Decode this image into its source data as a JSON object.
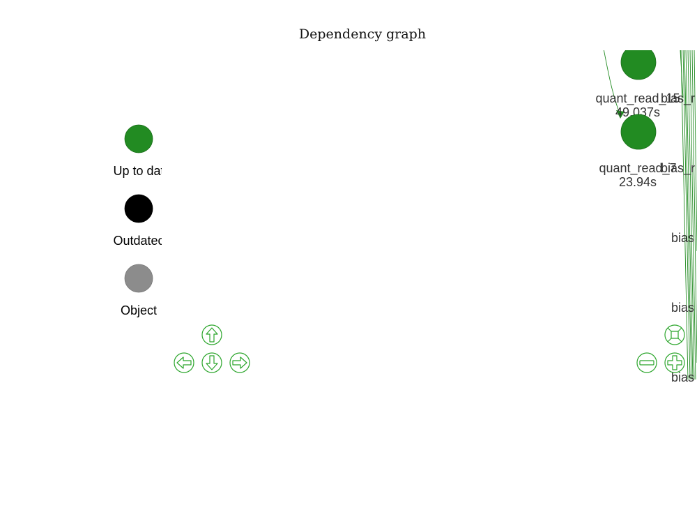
{
  "title": "Dependency graph",
  "colors": {
    "up_to_date": "#228b22",
    "outdated": "#000000",
    "object": "#8c8c8c",
    "edge": "#228b22",
    "control": "#2aa52a",
    "node_label": "#333333"
  },
  "legend": [
    {
      "label": "Up to dat",
      "status": "up_to_date"
    },
    {
      "label": "Outdatec",
      "status": "outdated"
    },
    {
      "label": "Object",
      "status": "object"
    }
  ],
  "nodes": [
    {
      "name": "quant_read_15",
      "time": "49.037s",
      "status": "up_to_date"
    },
    {
      "name": "quant_read_7",
      "time": "23.94s",
      "status": "up_to_date"
    }
  ],
  "side_labels": [
    "bias_r",
    "bias_r",
    "bias",
    "bias",
    "bias"
  ],
  "controls": {
    "pan": [
      "pan-up-icon",
      "pan-left-icon",
      "pan-down-icon",
      "pan-right-icon"
    ],
    "zoom": [
      "zoom-fit-icon",
      "zoom-out-icon",
      "zoom-in-icon"
    ]
  }
}
